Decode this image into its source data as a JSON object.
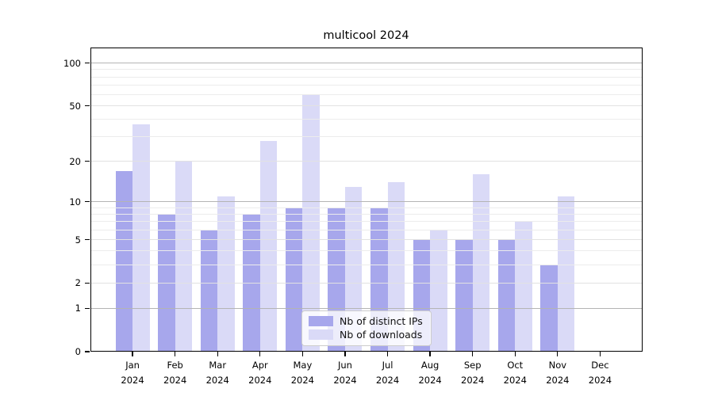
{
  "title": "multicool 2024",
  "chart_data": {
    "type": "bar",
    "title": "multicool 2024",
    "categories": [
      "Jan",
      "Feb",
      "Mar",
      "Apr",
      "May",
      "Jun",
      "Jul",
      "Aug",
      "Sep",
      "Oct",
      "Nov",
      "Dec"
    ],
    "category_year": "2024",
    "series": [
      {
        "name": "Nb of distinct IPs",
        "color": "#a7a7ec",
        "values": [
          17,
          8,
          6,
          8,
          9,
          9,
          9,
          5,
          5,
          5,
          3,
          0
        ]
      },
      {
        "name": "Nb of downloads",
        "color": "#dadaf7",
        "values": [
          37,
          20,
          11,
          28,
          60,
          13,
          14,
          6,
          16,
          7,
          11,
          0
        ]
      }
    ],
    "xlabel": "",
    "ylabel": "",
    "y_scale": "log10(1+x)",
    "y_ticks": [
      0,
      1,
      2,
      5,
      10,
      20,
      50,
      100
    ],
    "y_major_gridlines": [
      1,
      10,
      100
    ],
    "y_soft_gridlines": [
      2,
      5,
      20,
      50
    ],
    "y_minor_gridlines": [
      3,
      4,
      6,
      7,
      8,
      9,
      30,
      40,
      60,
      70,
      80,
      90
    ],
    "ylim": [
      0,
      128
    ],
    "grid": true,
    "legend_position": "lower center",
    "grid_major_color": "#b4b4b4",
    "grid_minor_color": "#ececec",
    "spine_color": "#000000"
  }
}
